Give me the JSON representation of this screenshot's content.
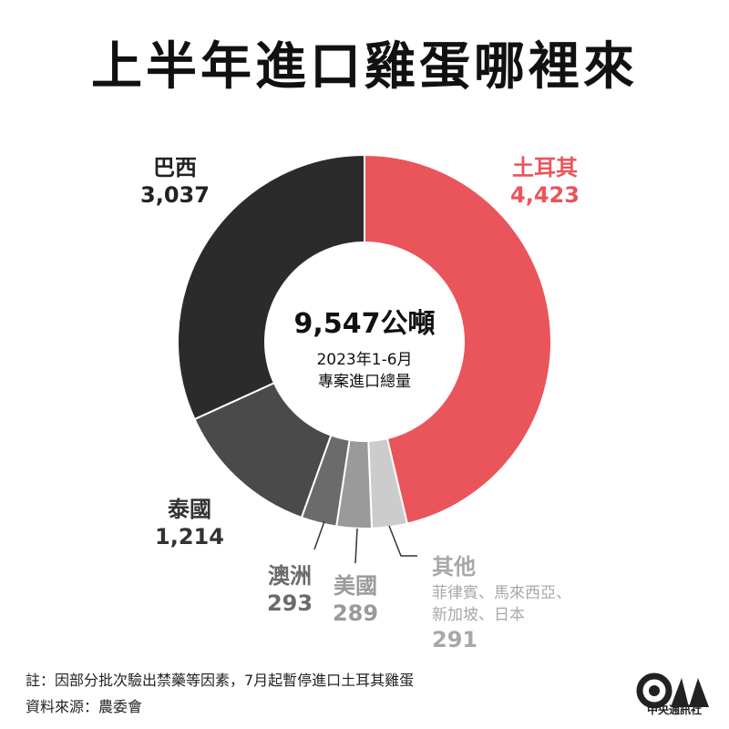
{
  "title": "上半年進口雞蛋哪裡來",
  "chart_data": {
    "type": "pie",
    "unit": "公噸",
    "total_label": "9,547公噸",
    "subtitle_lines": [
      "2023年1-6月",
      "專案進口總量"
    ],
    "slices": [
      {
        "name": "土耳其",
        "value": 4423,
        "value_label": "4,423",
        "color": "#ea545b",
        "label_color": "#ea545b"
      },
      {
        "name": "其他",
        "value": 291,
        "value_label": "291",
        "color": "#cccccc",
        "label_color": "#a8a8a8",
        "detail_lines": [
          "菲律賓、馬來西亞、",
          "新加坡、日本"
        ]
      },
      {
        "name": "美國",
        "value": 289,
        "value_label": "289",
        "color": "#9a9a9a",
        "label_color": "#9a9a9a"
      },
      {
        "name": "澳洲",
        "value": 293,
        "value_label": "293",
        "color": "#6b6b6b",
        "label_color": "#6b6b6b"
      },
      {
        "name": "泰國",
        "value": 1214,
        "value_label": "1,214",
        "color": "#4a4a4a",
        "label_color": "#333333"
      },
      {
        "name": "巴西",
        "value": 3037,
        "value_label": "3,037",
        "color": "#2b2b2b",
        "label_color": "#222222"
      }
    ]
  },
  "footnote": "註：因部分批次驗出禁藥等因素，7月起暫停進口土耳其雞蛋",
  "source": "資料來源：農委會",
  "logo": {
    "text": "中央通訊社",
    "mark": "CNA"
  }
}
